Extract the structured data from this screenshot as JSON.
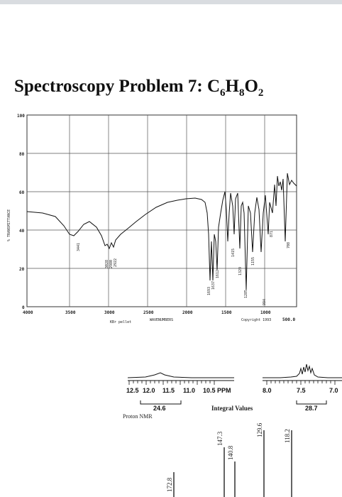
{
  "title": {
    "main": "Spectroscopy Problem 7: C",
    "sub1": "6",
    "mid1": "H",
    "sub2": "8",
    "mid2": "O",
    "sub3": "2"
  },
  "ir": {
    "y_axis_label": "% TRANSMITTANCE",
    "y_ticks": [
      "100",
      "80",
      "60",
      "40",
      "20",
      "0"
    ],
    "x_ticks": [
      "4000",
      "3500",
      "3000",
      "2500",
      "2000",
      "1500",
      "1000",
      "500.0"
    ],
    "x_axis_label": "WAVENUMBERS",
    "sample": "KBr pellet",
    "copyright": "Copyright 1993",
    "peak_labels": [
      "3441",
      "3028",
      "2980",
      "2922",
      "1693",
      "1637",
      "1612",
      "1415",
      "1329",
      "1285",
      "1155",
      "994",
      "871",
      "708"
    ]
  },
  "hnmr": {
    "ticks_left": [
      "12.5",
      "12.0",
      "11.5",
      "11.0",
      "10.5 PPM"
    ],
    "ticks_right": [
      "8.0",
      "7.5",
      "7.0"
    ],
    "integral_left": "24.6",
    "integral_right": "28.7",
    "integral_title": "Integral Values",
    "label": "Proton NMR"
  },
  "cnmr": {
    "peaks": [
      "172.8",
      "147.3",
      "140.8",
      "129.6",
      "118.2"
    ]
  },
  "colors": {
    "line": "#111111",
    "grid": "#333333",
    "topbar": "#d9dce0"
  }
}
